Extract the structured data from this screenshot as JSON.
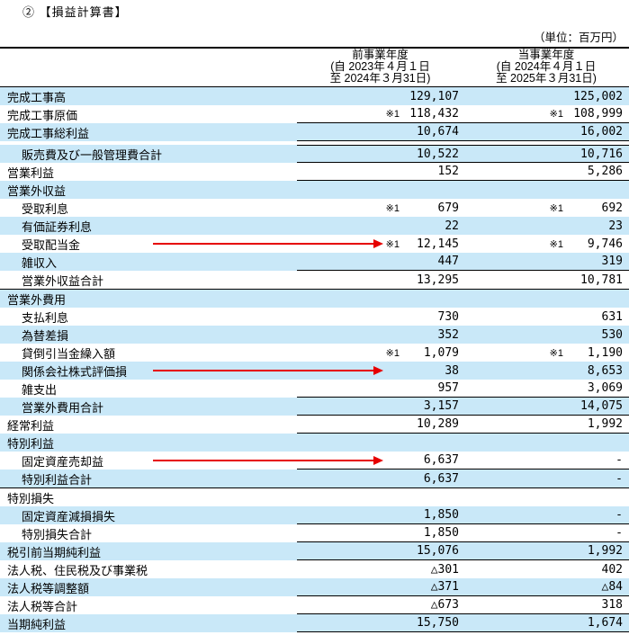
{
  "title": "② 【損益計算書】",
  "unit_note": "（単位：百万円）",
  "colors": {
    "row_shade": "#c9e8f8",
    "arrow_red": "#e60000",
    "line": "#000000"
  },
  "table": {
    "col1_header": {
      "period": "前事業年度",
      "from": "(自  2023年４月１日",
      "to": "至  2024年３月31日)"
    },
    "col2_header": {
      "period": "当事業年度",
      "from": "(自  2024年４月１日",
      "to": "至  2025年３月31日)"
    },
    "rows": [
      {
        "label": "完成工事高",
        "indent": 0,
        "shade": true,
        "note1": "",
        "v1": "129,107",
        "note2": "",
        "v2": "125,002",
        "line": "none"
      },
      {
        "label": "完成工事原価",
        "indent": 0,
        "shade": false,
        "note1": "※1",
        "v1": "118,432",
        "note2": "※1",
        "v2": "108,999",
        "line": "num"
      },
      {
        "label": "完成工事総利益",
        "indent": 0,
        "shade": true,
        "note1": "",
        "v1": "10,674",
        "note2": "",
        "v2": "16,002",
        "line": "num"
      },
      {
        "label": "販売費及び一般管理費合計",
        "indent": 1,
        "shade": true,
        "note1": "",
        "v1": "10,522",
        "note2": "",
        "v2": "10,716",
        "line": "num",
        "topline": true,
        "gap_before": true
      },
      {
        "label": "営業利益",
        "indent": 0,
        "shade": false,
        "note1": "",
        "v1": "152",
        "note2": "",
        "v2": "5,286",
        "line": "num"
      },
      {
        "label": "営業外収益",
        "indent": 0,
        "shade": true,
        "note1": "",
        "v1": "",
        "note2": "",
        "v2": "",
        "line": "none",
        "section": true
      },
      {
        "label": "受取利息",
        "indent": 1,
        "shade": false,
        "note1": "※1",
        "v1": "679",
        "note2": "※1",
        "v2": "692",
        "line": "none"
      },
      {
        "label": "有価証券利息",
        "indent": 1,
        "shade": true,
        "note1": "",
        "v1": "22",
        "note2": "",
        "v2": "23",
        "line": "none"
      },
      {
        "label": "受取配当金",
        "indent": 1,
        "shade": false,
        "note1": "※1",
        "v1": "12,145",
        "note2": "※1",
        "v2": "9,746",
        "line": "none",
        "arrow": true
      },
      {
        "label": "雑収入",
        "indent": 1,
        "shade": true,
        "note1": "",
        "v1": "447",
        "note2": "",
        "v2": "319",
        "line": "num"
      },
      {
        "label": "営業外収益合計",
        "indent": 1,
        "shade": false,
        "note1": "",
        "v1": "13,295",
        "note2": "",
        "v2": "10,781",
        "line": "full"
      },
      {
        "label": "営業外費用",
        "indent": 0,
        "shade": true,
        "note1": "",
        "v1": "",
        "note2": "",
        "v2": "",
        "line": "none",
        "section": true
      },
      {
        "label": "支払利息",
        "indent": 1,
        "shade": false,
        "note1": "",
        "v1": "730",
        "note2": "",
        "v2": "631",
        "line": "none"
      },
      {
        "label": "為替差損",
        "indent": 1,
        "shade": true,
        "note1": "",
        "v1": "352",
        "note2": "",
        "v2": "530",
        "line": "none"
      },
      {
        "label": "貸倒引当金繰入額",
        "indent": 1,
        "shade": false,
        "note1": "※1",
        "v1": "1,079",
        "note2": "※1",
        "v2": "1,190",
        "line": "none"
      },
      {
        "label": "関係会社株式評価損",
        "indent": 1,
        "shade": true,
        "note1": "",
        "v1": "38",
        "note2": "",
        "v2": "8,653",
        "line": "none",
        "arrow": true
      },
      {
        "label": "雑支出",
        "indent": 1,
        "shade": false,
        "note1": "",
        "v1": "957",
        "note2": "",
        "v2": "3,069",
        "line": "num"
      },
      {
        "label": "営業外費用合計",
        "indent": 1,
        "shade": true,
        "note1": "",
        "v1": "3,157",
        "note2": "",
        "v2": "14,075",
        "line": "num"
      },
      {
        "label": "経常利益",
        "indent": 0,
        "shade": false,
        "note1": "",
        "v1": "10,289",
        "note2": "",
        "v2": "1,992",
        "line": "num"
      },
      {
        "label": "特別利益",
        "indent": 0,
        "shade": true,
        "note1": "",
        "v1": "",
        "note2": "",
        "v2": "",
        "line": "none",
        "section": true
      },
      {
        "label": "固定資産売却益",
        "indent": 1,
        "shade": false,
        "note1": "",
        "v1": "6,637",
        "note2": "",
        "v2": "-",
        "line": "num",
        "arrow": true
      },
      {
        "label": "特別利益合計",
        "indent": 1,
        "shade": true,
        "note1": "",
        "v1": "6,637",
        "note2": "",
        "v2": "-",
        "line": "full"
      },
      {
        "label": "特別損失",
        "indent": 0,
        "shade": false,
        "note1": "",
        "v1": "",
        "note2": "",
        "v2": "",
        "line": "none",
        "section": true
      },
      {
        "label": "固定資産減損損失",
        "indent": 1,
        "shade": true,
        "note1": "",
        "v1": "1,850",
        "note2": "",
        "v2": "-",
        "line": "num"
      },
      {
        "label": "特別損失合計",
        "indent": 1,
        "shade": false,
        "note1": "",
        "v1": "1,850",
        "note2": "",
        "v2": "-",
        "line": "num"
      },
      {
        "label": "税引前当期純利益",
        "indent": 0,
        "shade": true,
        "note1": "",
        "v1": "15,076",
        "note2": "",
        "v2": "1,992",
        "line": "num"
      },
      {
        "label": "法人税、住民税及び事業税",
        "indent": 0,
        "shade": false,
        "note1": "",
        "v1": "△301",
        "note2": "",
        "v2": "402",
        "line": "none"
      },
      {
        "label": "法人税等調整額",
        "indent": 0,
        "shade": true,
        "note1": "",
        "v1": "△371",
        "note2": "",
        "v2": "△84",
        "line": "num"
      },
      {
        "label": "法人税等合計",
        "indent": 0,
        "shade": false,
        "note1": "",
        "v1": "△673",
        "note2": "",
        "v2": "318",
        "line": "num"
      },
      {
        "label": "当期純利益",
        "indent": 0,
        "shade": true,
        "note1": "",
        "v1": "15,750",
        "note2": "",
        "v2": "1,674",
        "line": "num"
      }
    ]
  }
}
